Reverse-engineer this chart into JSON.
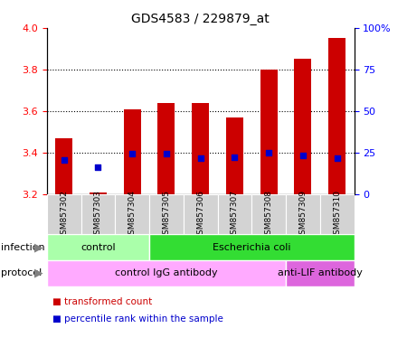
{
  "title": "GDS4583 / 229879_at",
  "samples": [
    "GSM857302",
    "GSM857303",
    "GSM857304",
    "GSM857305",
    "GSM857306",
    "GSM857307",
    "GSM857308",
    "GSM857309",
    "GSM857310"
  ],
  "bar_values": [
    3.47,
    3.21,
    3.61,
    3.64,
    3.64,
    3.57,
    3.8,
    3.85,
    3.95
  ],
  "bar_bottom": 3.2,
  "blue_dot_values": [
    3.365,
    3.33,
    3.395,
    3.395,
    3.375,
    3.38,
    3.4,
    3.385,
    3.375
  ],
  "ylim": [
    3.2,
    4.0
  ],
  "y_ticks_left": [
    3.2,
    3.4,
    3.6,
    3.8,
    4.0
  ],
  "y_ticks_right": [
    0,
    25,
    50,
    75,
    100
  ],
  "y_ticks_right_labels": [
    "0",
    "25",
    "50",
    "75",
    "100%"
  ],
  "bar_color": "#cc0000",
  "blue_dot_color": "#0000cc",
  "infection_groups": [
    {
      "label": "control",
      "start": 0,
      "end": 3,
      "color": "#aaffaa"
    },
    {
      "label": "Escherichia coli",
      "start": 3,
      "end": 9,
      "color": "#33dd33"
    }
  ],
  "protocol_groups": [
    {
      "label": "control IgG antibody",
      "start": 0,
      "end": 7,
      "color": "#ffaaff"
    },
    {
      "label": "anti-LIF antibody",
      "start": 7,
      "end": 9,
      "color": "#dd66dd"
    }
  ],
  "legend_items": [
    {
      "color": "#cc0000",
      "label": "transformed count"
    },
    {
      "color": "#0000cc",
      "label": "percentile rank within the sample"
    }
  ],
  "xlabel_infection": "infection",
  "xlabel_protocol": "protocol",
  "tick_bg_color": "#d3d3d3",
  "bar_width": 0.5
}
